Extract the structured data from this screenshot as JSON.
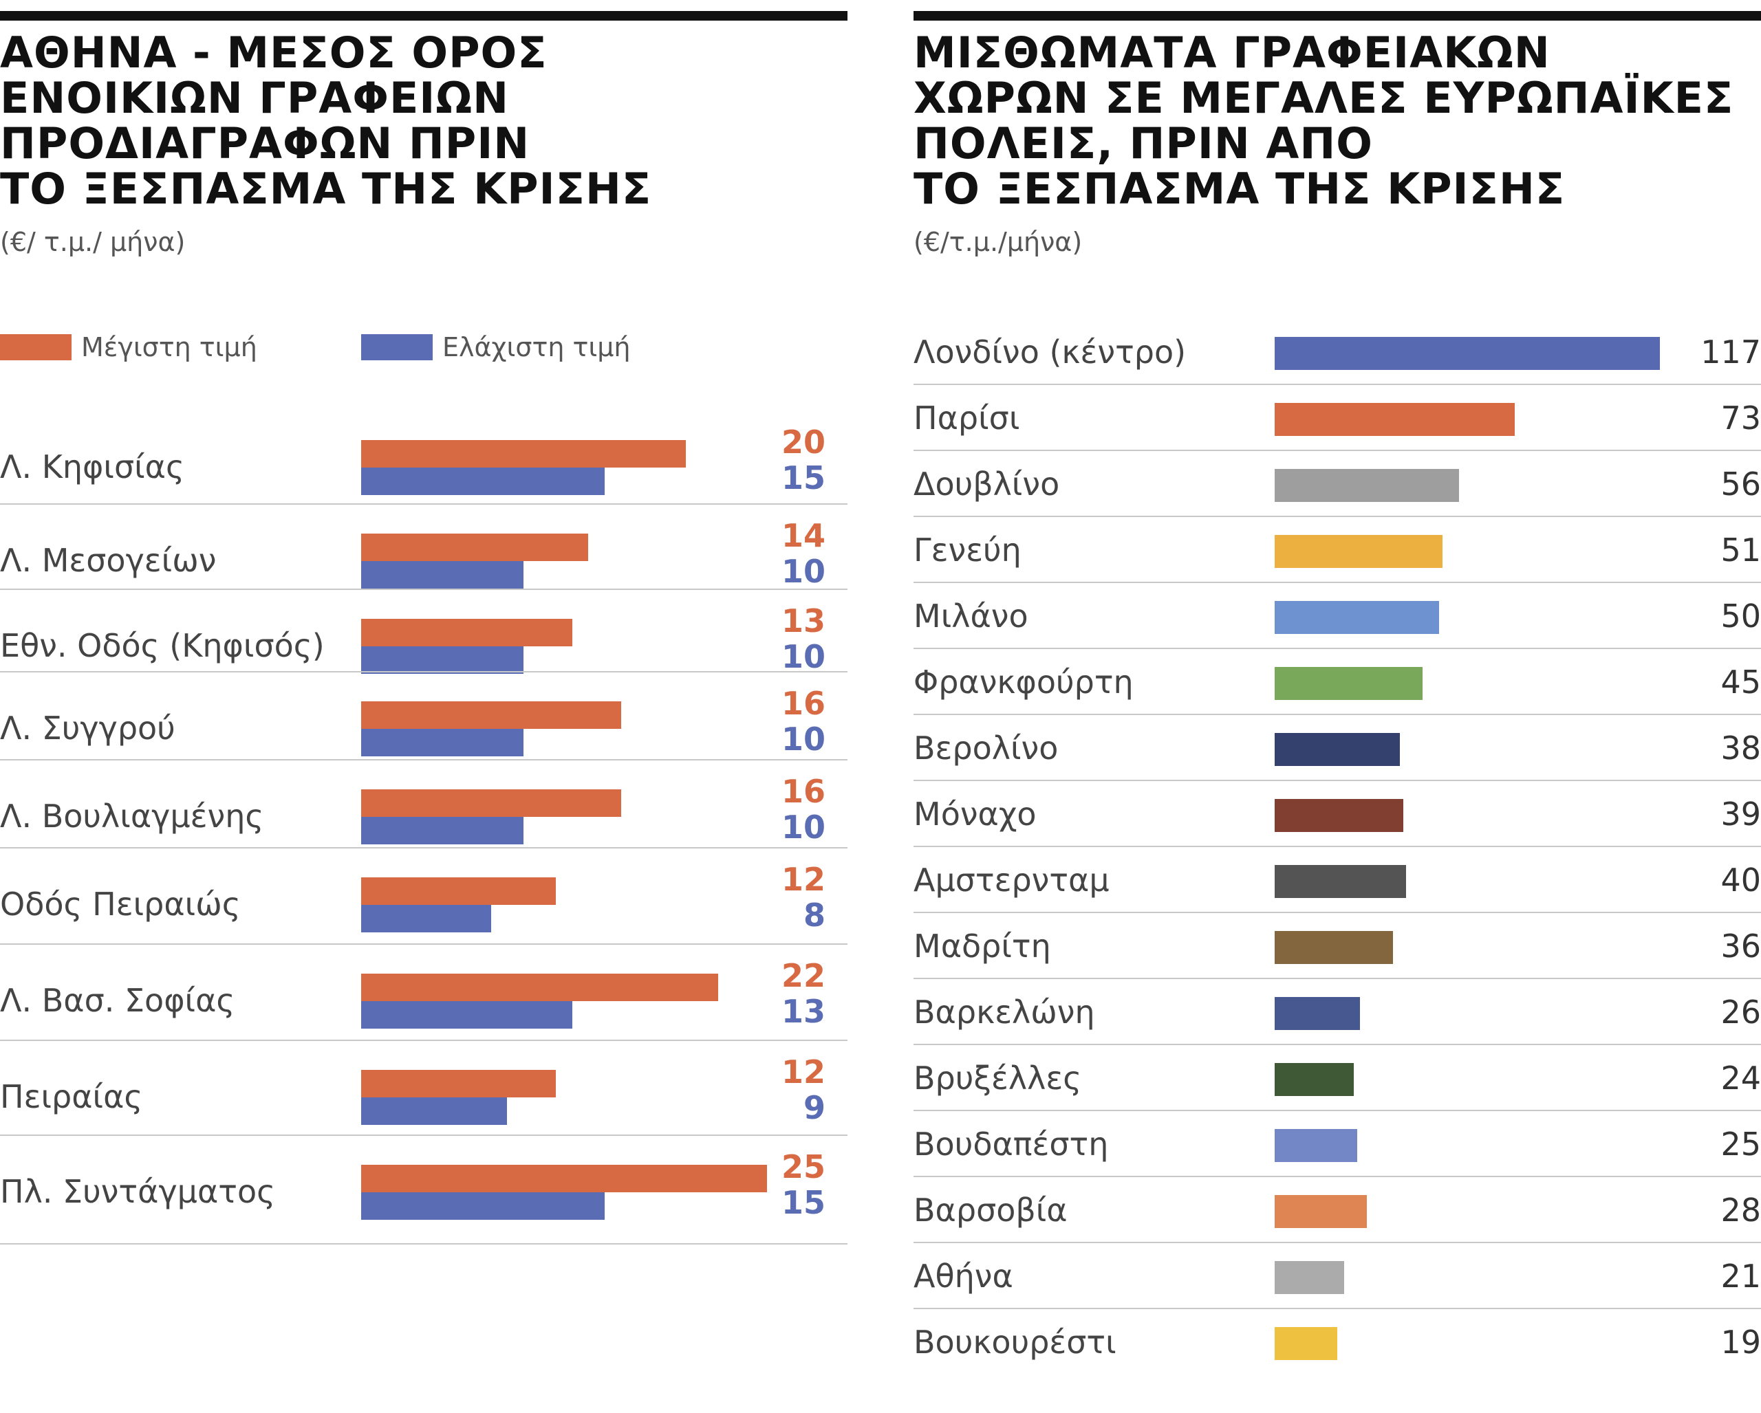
{
  "chart_data": [
    {
      "type": "bar",
      "orientation": "horizontal",
      "title": "ΑΘΗΝΑ - ΜΕΣΟΣ ΟΡΟΣ ΕΝΟΙΚΙΩΝ ΓΡΑΦΕΙΩΝ ΠΡΟΔΙΑΓΡΑΦΩΝ ΠΡΙΝ ΤΟ ΞΕΣΠΑΣΜΑ ΤΗΣ ΚΡΙΣΗΣ",
      "title_lines": [
        "ΑΘΗΝΑ - ΜΕΣΟΣ ΟΡΟΣ",
        "ΕΝΟΙΚΙΩΝ ΓΡΑΦΕΙΩΝ",
        "ΠΡΟΔΙΑΓΡΑΦΩΝ ΠΡΙΝ",
        "ΤΟ ΞΕΣΠΑΣΜΑ ΤΗΣ ΚΡΙΣΗΣ"
      ],
      "subtitle": "(€/ τ.μ./ μήνα)",
      "legend_placement": "top",
      "grid": false,
      "xlim": [
        0,
        25
      ],
      "categories": [
        "Λ. Κηφισίας",
        "Λ. Μεσογείων",
        "Εθν. Οδός (Κηφισός)",
        "Λ. Συγγρού",
        "Λ. Βουλιαγμένης",
        "Οδός Πειραιώς",
        "Λ. Βασ. Σοφίας",
        "Πειραίας",
        "Πλ. Συντάγματος"
      ],
      "series": [
        {
          "name": "Μέγιστη τιμή",
          "color": "#D86A43",
          "values": [
            20,
            14,
            13,
            16,
            16,
            12,
            22,
            12,
            25
          ]
        },
        {
          "name": "Ελάχιστη τιμή",
          "color": "#5A6CB3",
          "values": [
            15,
            10,
            10,
            10,
            10,
            8,
            13,
            9,
            15
          ]
        }
      ]
    },
    {
      "type": "bar",
      "orientation": "horizontal",
      "title": "ΜΙΣΘΩΜΑΤΑ ΓΡΑΦΕΙΑΚΩΝ ΧΩΡΩΝ ΣΕ ΜΕΓΑΛΕΣ ΕΥΡΩΠΑΪΚΕΣ ΠΟΛΕΙΣ, ΠΡΙΝ ΑΠΟ ΤΟ ΞΕΣΠΑΣΜΑ ΤΗΣ ΚΡΙΣΗΣ",
      "title_lines": [
        "ΜΙΣΘΩΜΑΤΑ ΓΡΑΦΕΙΑΚΩΝ",
        "ΧΩΡΩΝ ΣΕ ΜΕΓΑΛΕΣ ΕΥΡΩΠΑΪΚΕΣ",
        "ΠΟΛΕΙΣ, ΠΡΙΝ ΑΠΟ",
        "ΤΟ ΞΕΣΠΑΣΜΑ ΤΗΣ ΚΡΙΣΗΣ"
      ],
      "subtitle": "(€/τ.μ./μήνα)",
      "grid": false,
      "xlim": [
        0,
        117
      ],
      "categories": [
        "Λονδίνο (κέντρο)",
        "Παρίσι",
        "Δουβλίνο",
        "Γενεύη",
        "Μιλάνο",
        "Φρανκφούρτη",
        "Βερολίνο",
        "Μόναχο",
        "Αμστερνταμ",
        "Μαδρίτη",
        "Βαρκελώνη",
        "Βρυξέλλες",
        "Βουδαπέστη",
        "Βαρσοβία",
        "Αθήνα",
        "Βουκουρέστι"
      ],
      "values": [
        117,
        73,
        56,
        51,
        50,
        45,
        38,
        39,
        40,
        36,
        26,
        24,
        25,
        28,
        21,
        19
      ],
      "colors": [
        "#5769B0",
        "#D86A43",
        "#9E9E9E",
        "#EBB040",
        "#6E92CF",
        "#79A85A",
        "#34406E",
        "#813F31",
        "#545454",
        "#83663E",
        "#47578F",
        "#3F5936",
        "#7386C6",
        "#DE8553",
        "#ABABAB",
        "#EEC240"
      ]
    }
  ]
}
